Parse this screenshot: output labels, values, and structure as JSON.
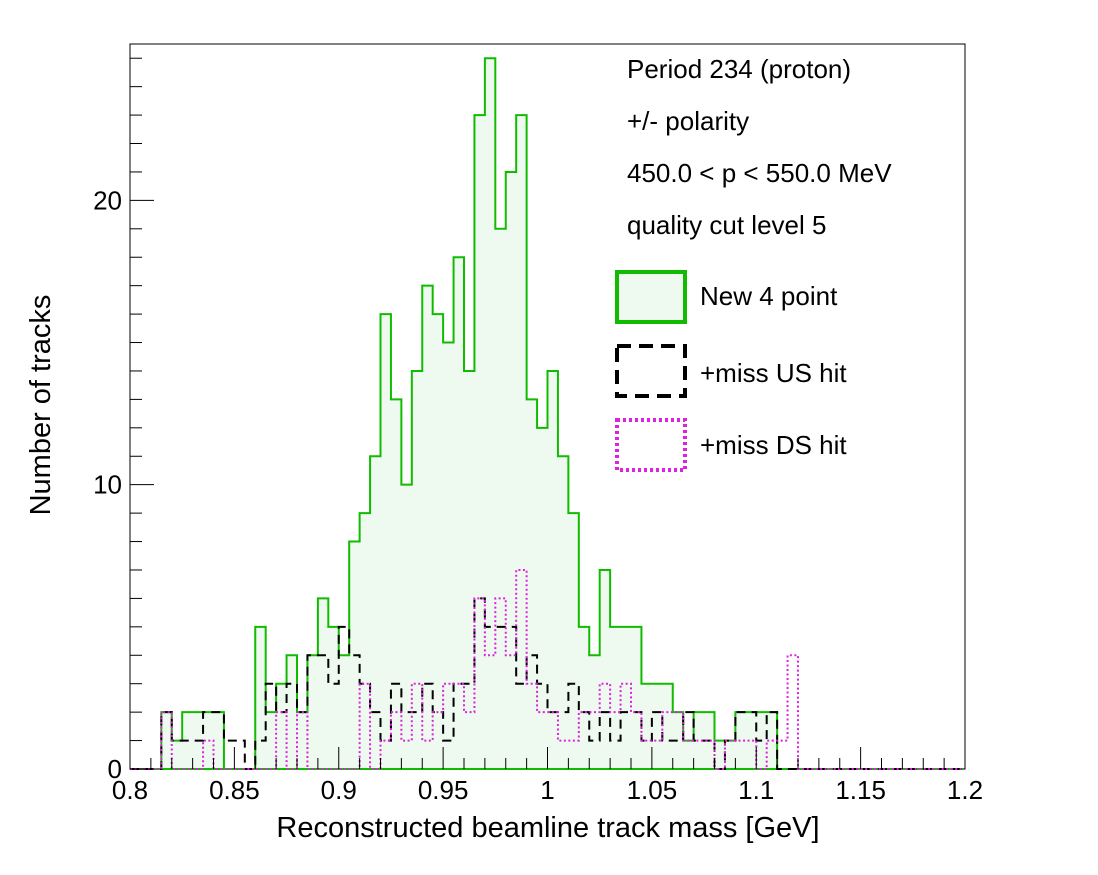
{
  "chart_data": {
    "type": "histogram",
    "xlabel": "Reconstructed beamline track mass [GeV]",
    "ylabel": "Number of tracks",
    "xlim": [
      0.8,
      1.2
    ],
    "ylim": [
      0,
      25.5
    ],
    "bin_width": 0.005,
    "x_start": 0.8,
    "x_ticks": [
      "0.8",
      "0.85",
      "0.9",
      "0.95",
      "1",
      "1.05",
      "1.1",
      "1.15",
      "1.2"
    ],
    "y_ticks": [
      "0",
      "10",
      "20"
    ],
    "annotations": [
      "Period 234 (proton)",
      "+/- polarity",
      "450.0 < p < 550.0 MeV",
      "quality cut level 5"
    ],
    "legend_position": "top-right",
    "series": [
      {
        "name": "New 4 point",
        "style": "solid-filled",
        "color": "#11bb00",
        "fill": "#eefaef",
        "values": [
          0,
          0,
          0,
          2,
          1,
          2,
          2,
          2,
          2,
          0,
          0,
          0,
          5,
          2,
          3,
          4,
          2,
          4,
          6,
          5,
          4,
          8,
          9,
          11,
          16,
          13,
          10,
          14,
          17,
          16,
          15,
          18,
          14,
          23,
          25,
          19,
          21,
          23,
          13,
          12,
          14,
          11,
          9,
          5,
          4,
          7,
          5,
          5,
          5,
          3,
          3,
          3,
          2,
          1,
          2,
          2,
          1,
          1,
          2,
          2,
          2,
          2,
          0,
          0,
          0,
          0,
          0,
          0,
          0,
          0,
          0,
          0,
          0,
          0,
          0,
          0,
          0,
          0,
          0,
          0
        ]
      },
      {
        "name": "+miss US hit",
        "style": "dashed",
        "color": "#000000",
        "values": [
          0,
          0,
          0,
          2,
          1,
          1,
          1,
          2,
          2,
          1,
          1,
          0,
          1,
          3,
          2,
          3,
          2,
          4,
          4,
          3,
          5,
          4,
          3,
          2,
          1,
          3,
          2,
          2,
          3,
          2,
          1,
          3,
          3,
          6,
          5,
          5,
          5,
          3,
          4,
          3,
          2,
          2,
          3,
          2,
          1,
          2,
          1,
          2,
          2,
          1,
          2,
          1,
          1,
          2,
          1,
          1,
          0,
          1,
          2,
          2,
          1,
          2,
          0,
          0,
          0,
          0,
          0,
          0,
          0,
          0,
          0,
          0,
          0,
          0,
          0,
          0,
          0,
          0,
          0,
          0
        ]
      },
      {
        "name": "+miss DS hit",
        "style": "dotted",
        "color": "#dd22dd",
        "values": [
          0,
          0,
          0,
          2,
          0,
          0,
          0,
          1,
          0,
          0,
          0,
          0,
          0,
          0,
          2,
          0,
          2,
          0,
          0,
          0,
          0,
          0,
          3,
          0,
          1,
          2,
          1,
          3,
          1,
          2,
          3,
          3,
          2,
          6,
          4,
          6,
          4,
          7,
          3,
          2,
          2,
          1,
          1,
          2,
          2,
          3,
          2,
          3,
          2,
          1,
          1,
          2,
          2,
          1,
          1,
          1,
          0,
          1,
          1,
          1,
          0,
          1,
          1,
          4,
          0,
          0,
          0,
          0,
          0,
          0,
          0,
          0,
          0,
          0,
          0,
          0,
          0,
          0,
          0,
          0
        ]
      }
    ]
  }
}
